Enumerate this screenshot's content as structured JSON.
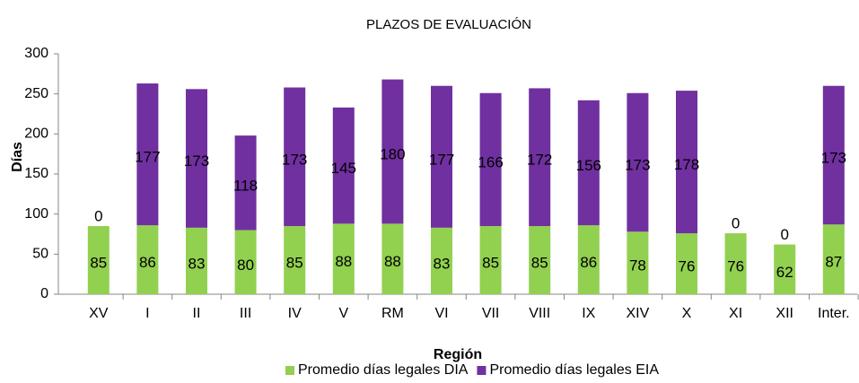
{
  "chart_data": {
    "type": "stacked_bar",
    "title": "PLAZOS DE EVALUACIÓN",
    "x_label": "Región",
    "y_label": "Días",
    "categories": [
      "XV",
      "I",
      "II",
      "III",
      "IV",
      "V",
      "RM",
      "VI",
      "VII",
      "VIII",
      "IX",
      "XIV",
      "X",
      "XI",
      "XII",
      "Inter."
    ],
    "series": [
      {
        "name": "Promedio días legales DIA",
        "color": "#92d050",
        "values": [
          85,
          86,
          83,
          80,
          85,
          88,
          88,
          83,
          85,
          85,
          86,
          78,
          76,
          76,
          62,
          87
        ]
      },
      {
        "name": "Promedio días legales EIA",
        "color": "#7030a0",
        "values": [
          0,
          177,
          173,
          118,
          173,
          145,
          180,
          177,
          166,
          172,
          156,
          173,
          178,
          0,
          0,
          173
        ]
      }
    ],
    "ylim": [
      0,
      300
    ],
    "yticks": [
      0,
      50,
      100,
      150,
      200,
      250,
      300
    ],
    "legend": "bottom"
  }
}
